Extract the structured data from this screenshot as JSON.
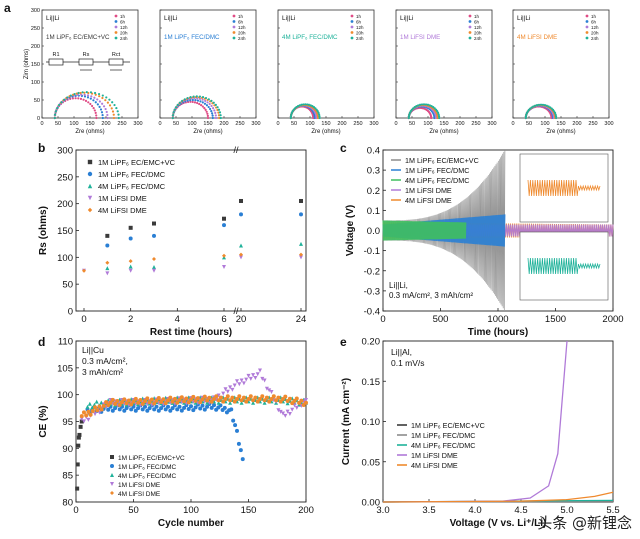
{
  "watermark": "头条 @新锂念",
  "colors": {
    "black": "#3a3a3a",
    "blue": "#2a7fd4",
    "teal": "#1fb29a",
    "purple": "#b07ad8",
    "orange": "#ef8a2e",
    "gray": "#8c8c8c",
    "pink": "#e04c86",
    "green": "#3fbf5f"
  },
  "series_labels": [
    "1M LiPF6 EC/EMC+VC",
    "1M LiPF6 FEC/DMC",
    "4M LiPF6 FEC/DMC",
    "1M LiFSI DME",
    "4M LiFSI DME"
  ],
  "chart_data": [
    {
      "panel": "a",
      "type": "scatter",
      "title": "Li||Li",
      "electrolytes": [
        "1M LiPF6 EC/EMC+VC",
        "1M LiPF6 FEC/DMC",
        "4M LiPF6 FEC/DMC",
        "1M LiFSI DME",
        "4M LiFSI DME"
      ],
      "legend": [
        "1h",
        "6h",
        "12h",
        "20h",
        "24h"
      ],
      "circuit_labels": [
        "R1",
        "Rs",
        "Rct"
      ],
      "xlabel": "Zre (ohms)",
      "ylabel": "Zim (ohms)",
      "xlim": [
        0,
        300
      ],
      "ylim": [
        0,
        300
      ],
      "xticks": [
        0,
        50,
        100,
        150,
        200,
        250,
        300
      ],
      "yticks": [
        0,
        50,
        100,
        150,
        200,
        250,
        300
      ],
      "arcs": [
        [
          {
            "t": "1h",
            "start": 40,
            "end": 170,
            "peak": 55
          },
          {
            "t": "6h",
            "start": 40,
            "end": 190,
            "peak": 62
          },
          {
            "t": "12h",
            "start": 40,
            "end": 205,
            "peak": 65
          },
          {
            "t": "20h",
            "start": 40,
            "end": 225,
            "peak": 70
          },
          {
            "t": "24h",
            "start": 40,
            "end": 240,
            "peak": 72
          }
        ],
        [
          {
            "t": "1h",
            "start": 40,
            "end": 150,
            "peak": 45
          },
          {
            "t": "6h",
            "start": 40,
            "end": 165,
            "peak": 50
          },
          {
            "t": "12h",
            "start": 40,
            "end": 175,
            "peak": 55
          },
          {
            "t": "20h",
            "start": 40,
            "end": 185,
            "peak": 58
          },
          {
            "t": "24h",
            "start": 40,
            "end": 190,
            "peak": 60
          }
        ],
        [
          {
            "t": "1h",
            "start": 40,
            "end": 110,
            "peak": 32
          },
          {
            "t": "6h",
            "start": 40,
            "end": 115,
            "peak": 34
          },
          {
            "t": "12h",
            "start": 40,
            "end": 120,
            "peak": 35
          },
          {
            "t": "20h",
            "start": 40,
            "end": 125,
            "peak": 36
          },
          {
            "t": "24h",
            "start": 40,
            "end": 130,
            "peak": 38
          }
        ],
        [
          {
            "t": "1h",
            "start": 40,
            "end": 110,
            "peak": 28
          },
          {
            "t": "6h",
            "start": 40,
            "end": 120,
            "peak": 32
          },
          {
            "t": "12h",
            "start": 40,
            "end": 125,
            "peak": 34
          },
          {
            "t": "20h",
            "start": 40,
            "end": 130,
            "peak": 36
          },
          {
            "t": "24h",
            "start": 40,
            "end": 135,
            "peak": 38
          }
        ],
        [
          {
            "t": "1h",
            "start": 40,
            "end": 120,
            "peak": 32
          },
          {
            "t": "6h",
            "start": 40,
            "end": 125,
            "peak": 34
          },
          {
            "t": "12h",
            "start": 40,
            "end": 128,
            "peak": 35
          },
          {
            "t": "20h",
            "start": 40,
            "end": 132,
            "peak": 36
          },
          {
            "t": "24h",
            "start": 40,
            "end": 135,
            "peak": 37
          }
        ]
      ]
    },
    {
      "panel": "b",
      "type": "scatter",
      "xlabel": "Rest time (hours)",
      "ylabel": "Rs (ohms)",
      "xlim": [
        0,
        24
      ],
      "ylim": [
        0,
        300
      ],
      "xticks": [
        0,
        2,
        4,
        6,
        20,
        24
      ],
      "yticks": [
        0,
        50,
        100,
        150,
        200,
        250,
        300
      ],
      "axis_break": "//",
      "series": [
        {
          "name": "1M LiPF6 EC/EMC+VC",
          "x": [
            1,
            2,
            3,
            6,
            20,
            24
          ],
          "values": [
            140,
            155,
            163,
            172,
            205,
            205
          ]
        },
        {
          "name": "1M LiPF6 FEC/DMC",
          "x": [
            1,
            2,
            3,
            6,
            20,
            24
          ],
          "values": [
            122,
            135,
            140,
            160,
            180,
            180
          ]
        },
        {
          "name": "4M LiPF6 FEC/DMC",
          "x": [
            1,
            2,
            3,
            6,
            20,
            24
          ],
          "values": [
            80,
            83,
            82,
            100,
            122,
            125
          ]
        },
        {
          "name": "1M LiFSI DME",
          "x": [
            0,
            1,
            2,
            3,
            6,
            20,
            24
          ],
          "values": [
            75,
            70,
            75,
            75,
            82,
            100,
            100
          ]
        },
        {
          "name": "4M LiFSI DME",
          "x": [
            0,
            1,
            2,
            3,
            6,
            20,
            24
          ],
          "values": [
            75,
            90,
            93,
            97,
            103,
            105,
            105
          ]
        }
      ]
    },
    {
      "panel": "c",
      "type": "line",
      "xlabel": "Time (hours)",
      "ylabel": "Voltage (V)",
      "xlim": [
        0,
        2000
      ],
      "ylim": [
        -0.4,
        0.4
      ],
      "xticks": [
        0,
        500,
        1000,
        1500,
        2000
      ],
      "yticks": [
        -0.4,
        -0.3,
        -0.2,
        -0.1,
        0.0,
        0.1,
        0.2,
        0.3,
        0.4
      ],
      "annotation": [
        "Li||Li,",
        "0.3 mA/cm², 3 mAh/cm²"
      ],
      "series": [
        {
          "name": "1M LiPF6 EC/EMC+VC",
          "x_end": 1060,
          "amp_start": 0.05,
          "amp_end": 0.4
        },
        {
          "name": "1M LiPF6 FEC/DMC",
          "x_end": 1060,
          "amp_start": 0.03,
          "amp_end": 0.08
        },
        {
          "name": "4M LiPF6 FEC/DMC",
          "x_end": 720,
          "amp_start": 0.05,
          "amp_end": 0.04
        },
        {
          "name": "1M LiFSI DME",
          "x_end": 2000,
          "amp_start": 0.03,
          "amp_end": 0.03
        },
        {
          "name": "4M LiFSI DME",
          "x_end": 2000,
          "amp_start": 0.04,
          "amp_end": 0.03
        }
      ]
    },
    {
      "panel": "d",
      "type": "scatter",
      "xlabel": "Cycle number",
      "ylabel": "CE (%)",
      "xlim": [
        0,
        200
      ],
      "ylim": [
        80,
        110
      ],
      "xticks": [
        0,
        50,
        100,
        150,
        200
      ],
      "yticks": [
        80,
        85,
        90,
        95,
        100,
        105,
        110
      ],
      "annotation": [
        "Li||Cu",
        "0.3 mA/cm²,",
        "3 mAh/cm²"
      ],
      "series": [
        {
          "name": "1M LiPF6 EC/EMC+VC",
          "x": [
            1,
            2,
            3,
            5
          ],
          "values": [
            83,
            91,
            93,
            95
          ]
        },
        {
          "name": "1M LiPF6 FEC/DMC",
          "x": [
            10,
            30,
            60,
            90,
            120,
            135,
            140,
            145
          ],
          "values": [
            97,
            97.5,
            97.5,
            97.5,
            97.8,
            97,
            93,
            88
          ]
        },
        {
          "name": "4M LiPF6 FEC/DMC",
          "x": [
            10,
            30,
            60,
            90,
            120,
            150,
            180,
            200
          ],
          "values": [
            98,
            98.5,
            98.8,
            99,
            99,
            99,
            99,
            98.5
          ]
        },
        {
          "name": "1M LiFSI DME",
          "x": [
            5,
            30,
            60,
            90,
            120,
            140,
            160,
            180,
            200
          ],
          "values": [
            95,
            98.5,
            98.5,
            98.8,
            99,
            102,
            104,
            96,
            99
          ]
        },
        {
          "name": "4M LiFSI DME",
          "x": [
            5,
            30,
            60,
            90,
            120,
            150,
            180,
            200
          ],
          "values": [
            96,
            98.5,
            98.8,
            99,
            99.2,
            99.2,
            99.2,
            98.5
          ]
        }
      ]
    },
    {
      "panel": "e",
      "type": "line",
      "xlabel": "Voltage (V vs. Li⁺/Li)",
      "ylabel": "Current (mA cm⁻²)",
      "xlim": [
        3.0,
        5.5
      ],
      "ylim": [
        0,
        0.2
      ],
      "xticks": [
        3.0,
        3.5,
        4.0,
        4.5,
        5.0,
        5.5
      ],
      "yticks": [
        0.0,
        0.05,
        0.1,
        0.15,
        0.2
      ],
      "annotation": [
        "Li||Al,",
        "0.1 mV/s"
      ],
      "series": [
        {
          "name": "1M LiPF6 EC/EMC+VC",
          "x": [
            3.0,
            5.5
          ],
          "values": [
            0,
            0.001
          ]
        },
        {
          "name": "1M LiPF6 FEC/DMC",
          "x": [
            3.0,
            5.5
          ],
          "values": [
            0,
            0.001
          ]
        },
        {
          "name": "4M LiPF6 FEC/DMC",
          "x": [
            3.0,
            5.5
          ],
          "values": [
            0,
            0.002
          ]
        },
        {
          "name": "1M LiFSI DME",
          "x": [
            3.0,
            4.3,
            4.6,
            4.8,
            4.9,
            5.0
          ],
          "values": [
            0,
            0.001,
            0.005,
            0.02,
            0.06,
            0.2
          ]
        },
        {
          "name": "4M LiFSI DME",
          "x": [
            3.0,
            4.5,
            5.0,
            5.3,
            5.5
          ],
          "values": [
            0,
            0.001,
            0.003,
            0.007,
            0.012
          ]
        }
      ]
    }
  ]
}
